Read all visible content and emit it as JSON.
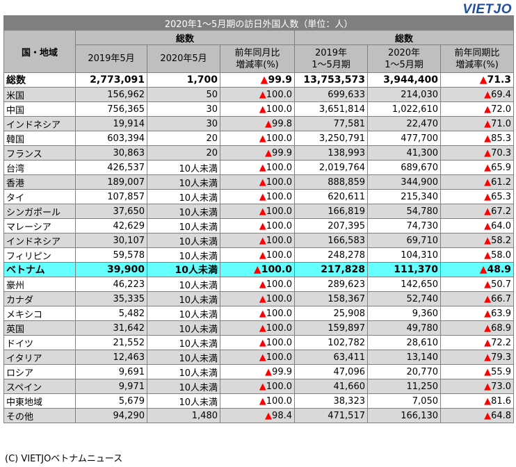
{
  "logo": "VIETJO",
  "title": "2020年1～5月期の訪日外国人数（単位：人）",
  "headers": {
    "country": "国・地域",
    "group": "総数",
    "may2019": "2019年5月",
    "may2020": "2020年5月",
    "may_rate_line1": "前年同月比",
    "may_rate_line2": "増減率(%)",
    "ytd2019_line1": "2019年",
    "ytd2019_line2": "1～5月期",
    "ytd2020_line1": "2020年",
    "ytd2020_line2": "1～5月期",
    "ytd_rate_line1": "前年同期比",
    "ytd_rate_line2": "増減率(%)"
  },
  "rows": [
    {
      "name": "総数",
      "may2019": "2,773,091",
      "may2020": "1,700",
      "may_rate": "99.9",
      "ytd2019": "13,753,573",
      "ytd2020": "3,944,400",
      "ytd_rate": "71.3",
      "style": "total"
    },
    {
      "name": "米国",
      "may2019": "156,962",
      "may2020": "50",
      "may_rate": "100.0",
      "ytd2019": "699,633",
      "ytd2020": "214,030",
      "ytd_rate": "69.4",
      "style": "gray"
    },
    {
      "name": "中国",
      "may2019": "756,365",
      "may2020": "30",
      "may_rate": "100.0",
      "ytd2019": "3,651,814",
      "ytd2020": "1,022,610",
      "ytd_rate": "72.0",
      "style": "white"
    },
    {
      "name": "インドネシア",
      "may2019": "19,914",
      "may2020": "30",
      "may_rate": "99.8",
      "ytd2019": "77,581",
      "ytd2020": "22,470",
      "ytd_rate": "71.0",
      "style": "gray"
    },
    {
      "name": "韓国",
      "may2019": "603,394",
      "may2020": "20",
      "may_rate": "100.0",
      "ytd2019": "3,250,791",
      "ytd2020": "477,700",
      "ytd_rate": "85.3",
      "style": "white"
    },
    {
      "name": "フランス",
      "may2019": "30,863",
      "may2020": "20",
      "may_rate": "99.9",
      "ytd2019": "138,993",
      "ytd2020": "41,300",
      "ytd_rate": "70.3",
      "style": "gray"
    },
    {
      "name": "台湾",
      "may2019": "426,537",
      "may2020": "10人未満",
      "may_rate": "100.0",
      "ytd2019": "2,019,764",
      "ytd2020": "689,670",
      "ytd_rate": "65.9",
      "style": "white"
    },
    {
      "name": "香港",
      "may2019": "189,007",
      "may2020": "10人未満",
      "may_rate": "100.0",
      "ytd2019": "888,859",
      "ytd2020": "344,900",
      "ytd_rate": "61.2",
      "style": "gray"
    },
    {
      "name": "タイ",
      "may2019": "107,857",
      "may2020": "10人未満",
      "may_rate": "100.0",
      "ytd2019": "620,611",
      "ytd2020": "215,340",
      "ytd_rate": "65.3",
      "style": "white"
    },
    {
      "name": "シンガポール",
      "may2019": "37,650",
      "may2020": "10人未満",
      "may_rate": "100.0",
      "ytd2019": "166,819",
      "ytd2020": "54,780",
      "ytd_rate": "67.2",
      "style": "gray"
    },
    {
      "name": "マレーシア",
      "may2019": "42,629",
      "may2020": "10人未満",
      "may_rate": "100.0",
      "ytd2019": "207,395",
      "ytd2020": "74,730",
      "ytd_rate": "64.0",
      "style": "white"
    },
    {
      "name": "インドネシア",
      "may2019": "30,107",
      "may2020": "10人未満",
      "may_rate": "100.0",
      "ytd2019": "166,583",
      "ytd2020": "69,710",
      "ytd_rate": "58.2",
      "style": "gray"
    },
    {
      "name": "フィリピン",
      "may2019": "59,578",
      "may2020": "10人未満",
      "may_rate": "100.0",
      "ytd2019": "248,278",
      "ytd2020": "104,310",
      "ytd_rate": "58.0",
      "style": "white"
    },
    {
      "name": "ベトナム",
      "may2019": "39,900",
      "may2020": "10人未満",
      "may_rate": "100.0",
      "ytd2019": "217,828",
      "ytd2020": "111,370",
      "ytd_rate": "48.9",
      "style": "hl"
    },
    {
      "name": "豪州",
      "may2019": "46,223",
      "may2020": "10人未満",
      "may_rate": "100.0",
      "ytd2019": "289,623",
      "ytd2020": "142,650",
      "ytd_rate": "50.7",
      "style": "white"
    },
    {
      "name": "カナダ",
      "may2019": "35,335",
      "may2020": "10人未満",
      "may_rate": "100.0",
      "ytd2019": "158,367",
      "ytd2020": "52,740",
      "ytd_rate": "66.7",
      "style": "gray"
    },
    {
      "name": "メキシコ",
      "may2019": "5,482",
      "may2020": "10人未満",
      "may_rate": "100.0",
      "ytd2019": "25,908",
      "ytd2020": "9,360",
      "ytd_rate": "63.9",
      "style": "white"
    },
    {
      "name": "英国",
      "may2019": "31,642",
      "may2020": "10人未満",
      "may_rate": "100.0",
      "ytd2019": "159,897",
      "ytd2020": "49,780",
      "ytd_rate": "68.9",
      "style": "gray"
    },
    {
      "name": "ドイツ",
      "may2019": "21,552",
      "may2020": "10人未満",
      "may_rate": "100.0",
      "ytd2019": "102,782",
      "ytd2020": "28,610",
      "ytd_rate": "72.2",
      "style": "white"
    },
    {
      "name": "イタリア",
      "may2019": "12,463",
      "may2020": "10人未満",
      "may_rate": "100.0",
      "ytd2019": "63,411",
      "ytd2020": "13,140",
      "ytd_rate": "79.3",
      "style": "gray"
    },
    {
      "name": "ロシア",
      "may2019": "9,691",
      "may2020": "10人未満",
      "may_rate": "99.9",
      "ytd2019": "47,096",
      "ytd2020": "20,770",
      "ytd_rate": "55.9",
      "style": "white"
    },
    {
      "name": "スペイン",
      "may2019": "9,971",
      "may2020": "10人未満",
      "may_rate": "100.0",
      "ytd2019": "41,660",
      "ytd2020": "11,250",
      "ytd_rate": "73.0",
      "style": "gray"
    },
    {
      "name": "中東地域",
      "may2019": "5,679",
      "may2020": "10人未満",
      "may_rate": "100.0",
      "ytd2019": "38,323",
      "ytd2020": "7,050",
      "ytd_rate": "81.6",
      "style": "white"
    },
    {
      "name": "その他",
      "may2019": "94,290",
      "may2020": "1,480",
      "may_rate": "98.4",
      "ytd2019": "471,517",
      "ytd2020": "166,130",
      "ytd_rate": "64.8",
      "style": "gray"
    }
  ],
  "triangle": "▲",
  "colors": {
    "triangle": "#ff0000",
    "highlight": "#66ffff",
    "header": "#bfbfbf",
    "title": "#7f7f7f",
    "stripe": "#d9d9d9",
    "logo": "#1f4e9c"
  },
  "footer": "(C) VIETJOベトナムニュース"
}
